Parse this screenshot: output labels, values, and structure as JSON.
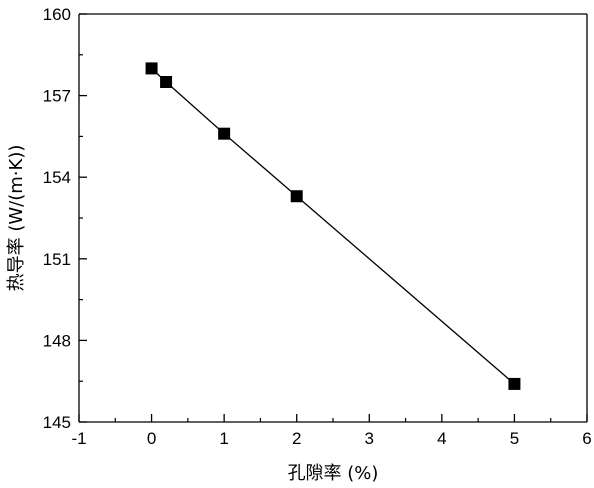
{
  "chart_data": {
    "type": "scatter",
    "connected": true,
    "title": "",
    "xlabel": "孔隙率 (%)",
    "ylabel": "热导率 (W/(m·K))",
    "xlim": [
      -1,
      6
    ],
    "ylim": [
      145,
      160
    ],
    "x_ticks": [
      -1,
      0,
      1,
      2,
      3,
      4,
      5,
      6
    ],
    "y_ticks": [
      145,
      148,
      151,
      154,
      157,
      160
    ],
    "x_tick_labels": [
      "-1",
      "0",
      "1",
      "2",
      "3",
      "4",
      "5",
      "6"
    ],
    "y_tick_labels": [
      "145",
      "148",
      "151",
      "154",
      "157",
      "160"
    ],
    "grid": false,
    "marker": "square",
    "colors": {
      "series": "#000000",
      "axis": "#000000"
    },
    "series": [
      {
        "x": [
          0,
          0.2,
          1,
          2,
          5
        ],
        "y": [
          158.0,
          157.5,
          155.6,
          153.3,
          146.4
        ]
      }
    ]
  }
}
